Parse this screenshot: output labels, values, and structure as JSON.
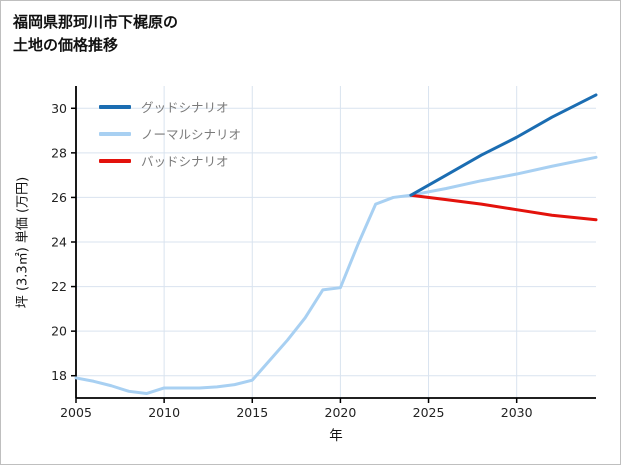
{
  "title": {
    "line1": "福岡県那珂川市下梶原の",
    "line2": "土地の価格推移"
  },
  "chart_data": {
    "type": "line",
    "title": "福岡県那珂川市下梶原の土地の価格推移",
    "xlabel": "年",
    "ylabel": "坪 (3.3㎡) 単価 (万円)",
    "xlim": [
      2005,
      2034.5
    ],
    "ylim": [
      17,
      31
    ],
    "xticks": [
      2005,
      2010,
      2015,
      2020,
      2025,
      2030
    ],
    "yticks": [
      18,
      20,
      22,
      24,
      26,
      28,
      30
    ],
    "grid": true,
    "legend_position": "top-left",
    "colors": {
      "grid": "#d9e3ef",
      "axis": "#000000",
      "tick_text": "#222222",
      "legend_text": "#7a7a7a",
      "title_text": "#111111"
    },
    "series": [
      {
        "name": "グッドシナリオ",
        "color": "#1b6db2",
        "x": [
          2024,
          2026,
          2028,
          2030,
          2032,
          2034.5
        ],
        "y": [
          26.1,
          27.0,
          27.9,
          28.7,
          29.6,
          30.6
        ]
      },
      {
        "name": "ノーマルシナリオ",
        "color": "#a8d0f2",
        "x": [
          2005,
          2006,
          2007,
          2008,
          2009,
          2010,
          2011,
          2012,
          2013,
          2014,
          2015,
          2016,
          2017,
          2018,
          2019,
          2020,
          2021,
          2022,
          2023,
          2024,
          2026,
          2028,
          2030,
          2032,
          2034.5
        ],
        "y": [
          17.9,
          17.75,
          17.55,
          17.3,
          17.2,
          17.45,
          17.45,
          17.45,
          17.5,
          17.6,
          17.8,
          18.7,
          19.6,
          20.6,
          21.85,
          21.95,
          23.9,
          25.7,
          26.0,
          26.1,
          26.4,
          26.75,
          27.05,
          27.4,
          27.8
        ]
      },
      {
        "name": "バッドシナリオ",
        "color": "#e3120c",
        "x": [
          2024,
          2026,
          2028,
          2030,
          2032,
          2034.5
        ],
        "y": [
          26.1,
          25.9,
          25.7,
          25.45,
          25.2,
          25.0
        ]
      }
    ]
  }
}
